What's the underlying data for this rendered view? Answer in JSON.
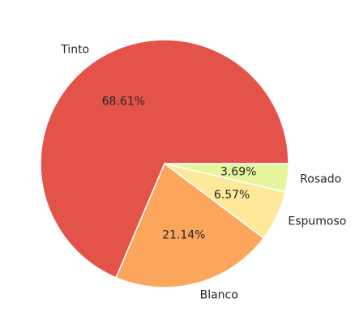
{
  "chart_data": {
    "type": "pie",
    "title": "",
    "slices": [
      {
        "label": "Tinto",
        "value": 68.61,
        "pct_label": "68.61%",
        "color": "#e3534a"
      },
      {
        "label": "Blanco",
        "value": 21.14,
        "pct_label": "21.14%",
        "color": "#fca55d"
      },
      {
        "label": "Espumoso",
        "value": 6.57,
        "pct_label": "6.57%",
        "color": "#fee899"
      },
      {
        "label": "Rosado",
        "value": 3.69,
        "pct_label": "3.69%",
        "color": "#e6f49d"
      }
    ],
    "start_angle_deg": 0,
    "direction": "counterclockwise"
  }
}
